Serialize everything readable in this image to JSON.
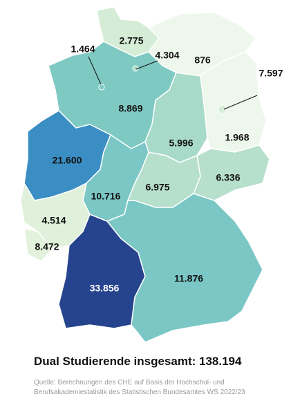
{
  "chart_data": {
    "type": "map",
    "values": [
      2775,
      1464,
      4304,
      876,
      7597,
      8869,
      5996,
      1968,
      21600,
      10716,
      6975,
      6336,
      4514,
      8472,
      33856,
      11876
    ],
    "value_labels": [
      "2.775",
      "1.464",
      "4.304",
      "876",
      "7.597",
      "8.869",
      "5.996",
      "1.968",
      "21.600",
      "10.716",
      "6.975",
      "6.336",
      "4.514",
      "8.472",
      "33.856",
      "11.876"
    ],
    "colors": [
      "#d5ecd6",
      "#7fc9c3",
      "#a8dac9",
      "#eef7ec",
      "#d5ecd6",
      "#7fc9c3",
      "#a8dac9",
      "#eef7ec",
      "#3b8ec4",
      "#7ac7c6",
      "#b6dfcc",
      "#b6dfcc",
      "#dff1da",
      "#e2f2dc",
      "#26448e",
      "#7ac7c6"
    ],
    "title": "Dual Studierende insgesamt: 138.194",
    "source": [
      "Quelle: Berechnungen des CHE auf Basis der Hochschul- und",
      "Berufsakademiestatistik des Statistischen Bundesamtes WS 2022/23"
    ]
  }
}
